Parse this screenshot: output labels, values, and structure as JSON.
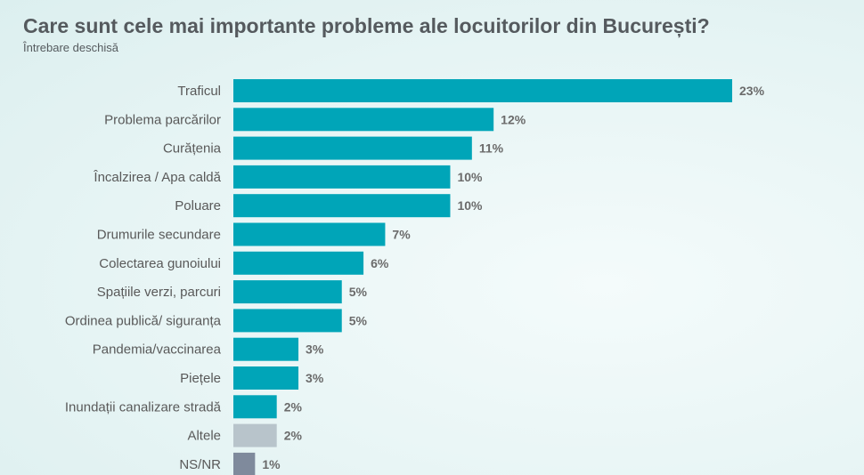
{
  "chart_data": {
    "type": "bar",
    "orientation": "horizontal",
    "title": "Care sunt cele mai importante probleme ale locuitorilor din București?",
    "subtitle": "Întrebare deschisă",
    "categories": [
      "Traficul",
      "Problema parcărilor",
      "Curățenia",
      "Încalzirea / Apa caldă",
      "Poluare",
      "Drumurile secundare",
      "Colectarea gunoiului",
      "Spațiile verzi, parcuri",
      "Ordinea publică/ siguranța",
      "Pandemia/vaccinarea",
      "Piețele",
      "Inundații canalizare stradă",
      "Altele",
      "NS/NR"
    ],
    "values": [
      23,
      12,
      11,
      10,
      10,
      7,
      6,
      5,
      5,
      3,
      3,
      2,
      2,
      1
    ],
    "labels": [
      "23%",
      "12%",
      "11%",
      "10%",
      "10%",
      "7%",
      "6%",
      "5%",
      "5%",
      "3%",
      "3%",
      "2%",
      "2%",
      "1%"
    ],
    "colors": [
      "#00a5b8",
      "#00a5b8",
      "#00a5b8",
      "#00a5b8",
      "#00a5b8",
      "#00a5b8",
      "#00a5b8",
      "#00a5b8",
      "#00a5b8",
      "#00a5b8",
      "#00a5b8",
      "#00a5b8",
      "#b8c4cb",
      "#7f8a9c"
    ],
    "xlabel": "",
    "ylabel": "",
    "xlim": [
      0,
      23
    ],
    "grid": false
  }
}
